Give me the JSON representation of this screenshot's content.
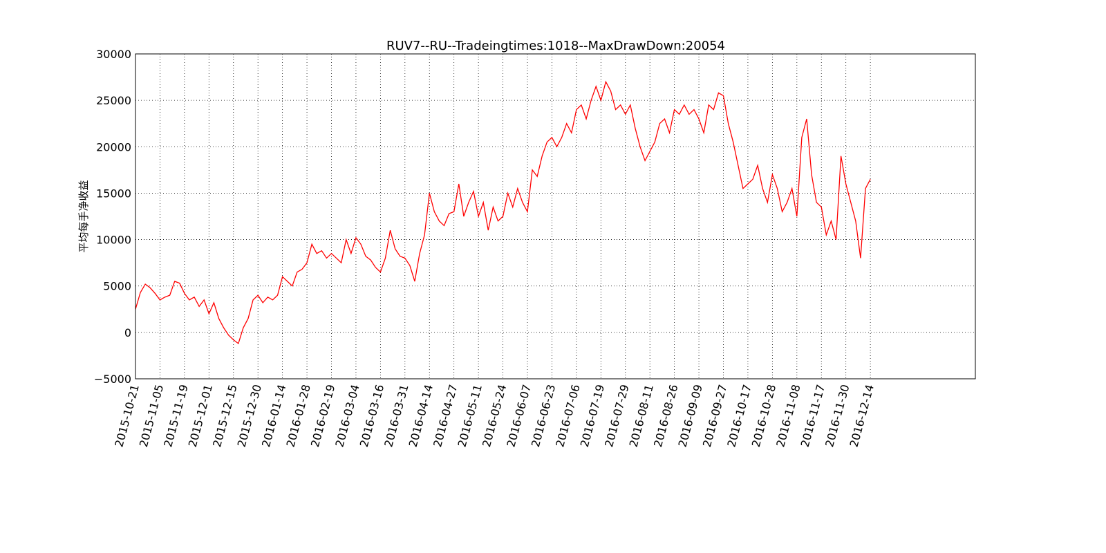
{
  "chart_data": {
    "type": "line",
    "title": "RUV7--RU--Tradeingtimes:1018--MaxDrawDown:20054",
    "ylabel": "平均每手净收益",
    "color": "#ff0000",
    "grid": true,
    "x": [
      0,
      7,
      14,
      21,
      28,
      35,
      42,
      49,
      56,
      63,
      70,
      77,
      84,
      91,
      98,
      105,
      112,
      119,
      126,
      133,
      140,
      147,
      154,
      161,
      168,
      175,
      182,
      189,
      196,
      203,
      210,
      217,
      224,
      231,
      238,
      245,
      252,
      259,
      266,
      273,
      280,
      287,
      294,
      301,
      308,
      315,
      322,
      329,
      336,
      343,
      350,
      357,
      364,
      371,
      378,
      385,
      392,
      399,
      406,
      413,
      420,
      427,
      434,
      441,
      448,
      455,
      462,
      469,
      476,
      483,
      490,
      497,
      504,
      511,
      518,
      525,
      532,
      539,
      546,
      553,
      560,
      567,
      574,
      581,
      588,
      595,
      602,
      609,
      616,
      623,
      630,
      637,
      644,
      651,
      658,
      665,
      672,
      679,
      686,
      693,
      700,
      707,
      714,
      721,
      728,
      735,
      742,
      749,
      756,
      763,
      770,
      777,
      784,
      791,
      798,
      805,
      812,
      819,
      826,
      833,
      840,
      847,
      854,
      861,
      868,
      875,
      882,
      889,
      896,
      903,
      910,
      917,
      924,
      931,
      938,
      945,
      952,
      959,
      966,
      973,
      980,
      987,
      994,
      1001,
      1008,
      1015,
      1022,
      1029,
      1036,
      1043,
      1050
    ],
    "values": [
      2500,
      4300,
      5200,
      4800,
      4200,
      3500,
      3800,
      4000,
      5500,
      5300,
      4200,
      3500,
      3800,
      2800,
      3500,
      2000,
      3200,
      1500,
      500,
      -300,
      -800,
      -1200,
      500,
      1500,
      3500,
      4000,
      3200,
      3800,
      3500,
      4000,
      6000,
      5500,
      5000,
      6500,
      6800,
      7500,
      9500,
      8500,
      8800,
      8000,
      8500,
      8000,
      7500,
      10000,
      8500,
      10200,
      9500,
      8200,
      7800,
      7000,
      6500,
      8000,
      11000,
      9000,
      8200,
      8000,
      7200,
      5500,
      8500,
      10500,
      15000,
      13000,
      12000,
      11500,
      12800,
      13000,
      16000,
      12500,
      14000,
      15200,
      12500,
      14000,
      11000,
      13500,
      12000,
      12500,
      15000,
      13500,
      15500,
      14000,
      13000,
      17500,
      16800,
      19000,
      20500,
      21000,
      20000,
      21000,
      22500,
      21500,
      24000,
      24500,
      23000,
      25000,
      26500,
      25000,
      27000,
      26000,
      24000,
      24500,
      23500,
      24500,
      22000,
      20000,
      18500,
      19500,
      20500,
      22500,
      23000,
      21500,
      24000,
      23500,
      24500,
      23500,
      24000,
      23000,
      21500,
      24500,
      24000,
      25800,
      25500,
      22500,
      20500,
      18000,
      15500,
      16000,
      16500,
      18000,
      15500,
      14000,
      17000,
      15500,
      13000,
      14000,
      15500,
      12500,
      21000,
      23000,
      17000,
      14000,
      13500,
      10500,
      12000,
      10000,
      19000,
      16000,
      14000,
      12000,
      8000,
      15500,
      16500
    ],
    "xlim": [
      0,
      1200
    ],
    "ylim": [
      -5000,
      30000
    ],
    "yticks": [
      {
        "value": -5000,
        "label": "−5000"
      },
      0,
      5000,
      10000,
      15000,
      20000,
      25000,
      30000
    ],
    "xticks": [
      {
        "value": 0,
        "label": "2015-10-21"
      },
      {
        "value": 35,
        "label": "2015-11-05"
      },
      {
        "value": 70,
        "label": "2015-11-19"
      },
      {
        "value": 105,
        "label": "2015-12-01"
      },
      {
        "value": 140,
        "label": "2015-12-15"
      },
      {
        "value": 175,
        "label": "2015-12-30"
      },
      {
        "value": 210,
        "label": "2016-01-14"
      },
      {
        "value": 245,
        "label": "2016-01-28"
      },
      {
        "value": 280,
        "label": "2016-02-19"
      },
      {
        "value": 315,
        "label": "2016-03-04"
      },
      {
        "value": 350,
        "label": "2016-03-16"
      },
      {
        "value": 385,
        "label": "2016-03-31"
      },
      {
        "value": 420,
        "label": "2016-04-14"
      },
      {
        "value": 455,
        "label": "2016-04-27"
      },
      {
        "value": 490,
        "label": "2016-05-11"
      },
      {
        "value": 525,
        "label": "2016-05-24"
      },
      {
        "value": 560,
        "label": "2016-06-07"
      },
      {
        "value": 595,
        "label": "2016-06-23"
      },
      {
        "value": 630,
        "label": "2016-07-06"
      },
      {
        "value": 665,
        "label": "2016-07-19"
      },
      {
        "value": 700,
        "label": "2016-07-29"
      },
      {
        "value": 735,
        "label": "2016-08-11"
      },
      {
        "value": 770,
        "label": "2016-08-26"
      },
      {
        "value": 805,
        "label": "2016-09-09"
      },
      {
        "value": 840,
        "label": "2016-09-27"
      },
      {
        "value": 875,
        "label": "2016-10-17"
      },
      {
        "value": 910,
        "label": "2016-10-28"
      },
      {
        "value": 945,
        "label": "2016-11-08"
      },
      {
        "value": 980,
        "label": "2016-11-17"
      },
      {
        "value": 1015,
        "label": "2016-11-30"
      },
      {
        "value": 1050,
        "label": "2016-12-14"
      }
    ]
  }
}
